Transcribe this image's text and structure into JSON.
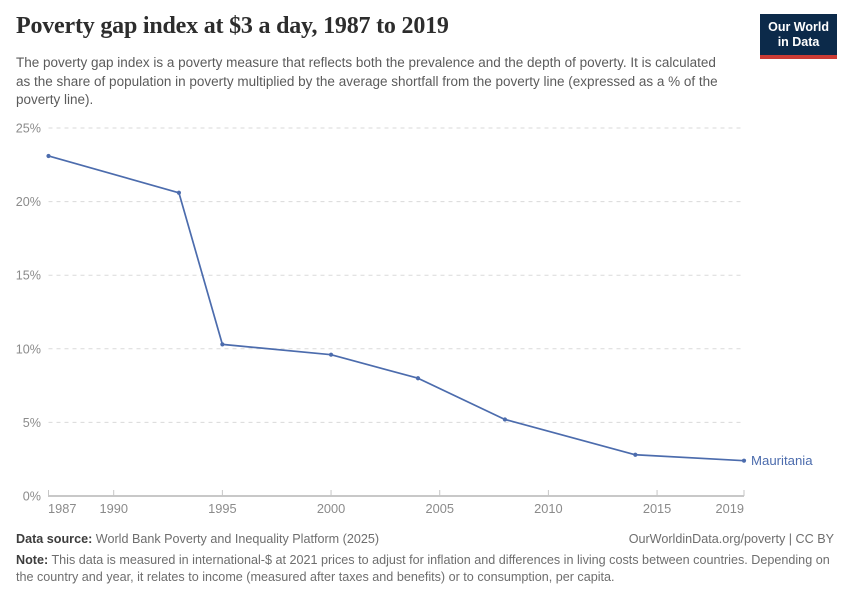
{
  "header": {
    "title": "Poverty gap index at $3 a day, 1987 to 2019",
    "subtitle": "The poverty gap index is a poverty measure that reflects both the prevalence and the depth of poverty. It is calculated as the share of population in poverty multiplied by the average shortfall from the poverty line (expressed as a % of the poverty line).",
    "logo": {
      "line1": "Our World",
      "line2": "in Data"
    }
  },
  "chart_data": {
    "type": "line",
    "title": "Poverty gap index at $3 a day, 1987 to 2019",
    "series": [
      {
        "name": "Mauritania",
        "color": "#4c6cad",
        "x": [
          1987,
          1993,
          1995,
          2000,
          2004,
          2008,
          2014,
          2019
        ],
        "values": [
          23.1,
          20.6,
          10.3,
          9.6,
          8.0,
          5.2,
          2.8,
          2.4
        ]
      }
    ],
    "x_ticks": [
      1987,
      1990,
      1995,
      2000,
      2005,
      2010,
      2015,
      2019
    ],
    "y_ticks": [
      0,
      5,
      10,
      15,
      20,
      25
    ],
    "y_tick_format": "{}%",
    "xlim": [
      1987,
      2019
    ],
    "ylim": [
      0,
      25
    ],
    "grid": "horizontal-dashed",
    "legend_position": "end-of-line"
  },
  "footer": {
    "datasource_label": "Data source:",
    "datasource_text": " World Bank Poverty and Inequality Platform (2025)",
    "attribution": "OurWorldinData.org/poverty | CC BY",
    "note_label": "Note:",
    "note_text": " This data is measured in international-$ at 2021 prices to adjust for inflation and differences in living costs between countries. Depending on the country and year, it relates to income (measured after taxes and benefits) or to consumption, per capita."
  },
  "colors": {
    "line": "#4c6cad",
    "logo_bg": "#0c2a4a",
    "logo_stripe": "#cc3b34",
    "grid": "#dadada",
    "axis": "#929292",
    "tick_label": "#8b8b8b"
  }
}
